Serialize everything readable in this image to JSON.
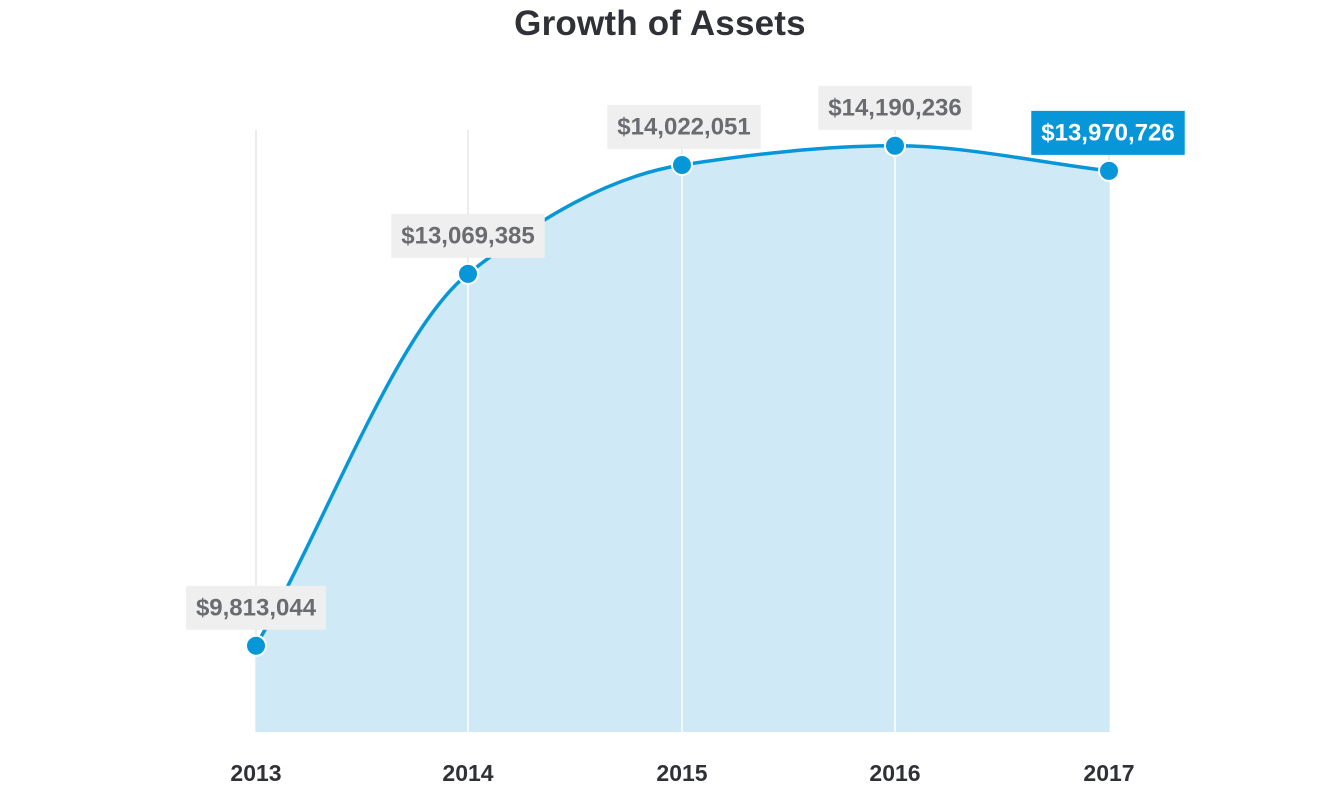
{
  "chart_data": {
    "type": "area",
    "title": "Growth of Assets",
    "xlabel": "",
    "ylabel": "",
    "grid": "vertical",
    "categories": [
      "2013",
      "2014",
      "2015",
      "2016",
      "2017"
    ],
    "values": [
      9813044,
      13069385,
      14022051,
      14190236,
      13970726
    ],
    "data_labels": [
      "$9,813,044",
      "$13,069,385",
      "$14,022,051",
      "$14,190,236",
      "$13,970,726"
    ],
    "highlight_index": 4,
    "ylim": [
      8000000,
      15000000
    ],
    "colors": {
      "line": "#0796d8",
      "area": "#cfe9f7",
      "label_background": "#efefef",
      "highlight_label_background": "#0796d8"
    }
  }
}
